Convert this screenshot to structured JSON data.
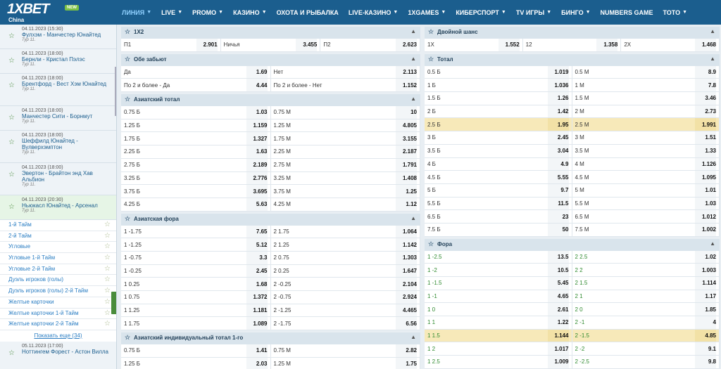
{
  "header": {
    "logo": "1XBET",
    "new_badge": "NEW",
    "region": "China",
    "nav": [
      "ЛИНИЯ",
      "LIVE",
      "PROMO",
      "КАЗИНО",
      "ОХОТА И РЫБАЛКА",
      "LIVE-КАЗИНО",
      "1XGAMES",
      "КИБЕРСПОРТ",
      "TV ИГРЫ",
      "БИНГО",
      "NUMBERS GAME",
      "ТОТО"
    ]
  },
  "sidebar": {
    "matches": [
      {
        "dt": "04.11.2023 (15:30)",
        "teams": "Фулхэм - Манчестер Юнайтед",
        "tour": "Тур 11."
      },
      {
        "dt": "04.11.2023 (18:00)",
        "teams": "Бернли - Кристал Пэлэс",
        "tour": "Тур 11."
      },
      {
        "dt": "04.11.2023 (18:00)",
        "teams": "Брентфорд - Вест Хэм Юнайтед",
        "tour": "Тур 11."
      },
      {
        "dt": "04.11.2023 (18:00)",
        "teams": "Манчестер Сити - Борнмут",
        "tour": "Тур 11."
      },
      {
        "dt": "04.11.2023 (18:00)",
        "teams": "Шеффилд Юнайтед - Вулверхэмптон",
        "tour": "Тур 11."
      },
      {
        "dt": "04.11.2023 (18:00)",
        "teams": "Эвертон - Брайтон энд Хав Альбион",
        "tour": "Тур 11."
      },
      {
        "dt": "04.11.2023 (20:30)",
        "teams": "Ньюкасл Юнайтед - Арсенал",
        "tour": "Тур 11."
      }
    ],
    "menu": [
      "1-й Тайм",
      "2-й Тайм",
      "Угловые",
      "Угловые 1-й Тайм",
      "Угловые 2-й Тайм",
      "Дуэль игроков (голы)",
      "Дуэль игроков (голы) 2-й Тайм",
      "Желтые карточки",
      "Желтые карточки 1-й Тайм",
      "Желтые карточки 2-й Тайм"
    ],
    "show_more": "Показать еще (34)",
    "next_match": {
      "dt": "05.11.2023 (17:00)",
      "teams": "Ноттингем Форест - Астон Вилла"
    }
  },
  "left": [
    {
      "title": "1X2",
      "rows": [
        [
          [
            "П1",
            "2.901"
          ],
          [
            "Ничья",
            "3.455"
          ],
          [
            "П2",
            "2.623"
          ]
        ]
      ]
    },
    {
      "title": "Обе забьют",
      "rows": [
        [
          [
            "Да",
            "1.69"
          ],
          [
            "Нет",
            "2.113"
          ]
        ],
        [
          [
            "По 2 и более - Да",
            "4.44"
          ],
          [
            "По 2 и более - Нет",
            "1.152"
          ]
        ]
      ]
    },
    {
      "title": "Азиатский тотал",
      "rows": [
        [
          [
            "0.75 Б",
            "1.03"
          ],
          [
            "0.75 М",
            "10"
          ]
        ],
        [
          [
            "1.25 Б",
            "1.159"
          ],
          [
            "1.25 М",
            "4.805"
          ]
        ],
        [
          [
            "1.75 Б",
            "1.327"
          ],
          [
            "1.75 М",
            "3.155"
          ]
        ],
        [
          [
            "2.25 Б",
            "1.63"
          ],
          [
            "2.25 М",
            "2.187"
          ]
        ],
        [
          [
            "2.75 Б",
            "2.189"
          ],
          [
            "2.75 М",
            "1.791"
          ]
        ],
        [
          [
            "3.25 Б",
            "2.776"
          ],
          [
            "3.25 М",
            "1.408"
          ]
        ],
        [
          [
            "3.75 Б",
            "3.695"
          ],
          [
            "3.75 М",
            "1.25"
          ]
        ],
        [
          [
            "4.25 Б",
            "5.63"
          ],
          [
            "4.25 М",
            "1.12"
          ]
        ]
      ]
    },
    {
      "title": "Азиатская фора",
      "rows": [
        [
          [
            "1 -1.75",
            "7.65"
          ],
          [
            "2 1.75",
            "1.064"
          ]
        ],
        [
          [
            "1 -1.25",
            "5.12"
          ],
          [
            "2 1.25",
            "1.142"
          ]
        ],
        [
          [
            "1 -0.75",
            "3.3"
          ],
          [
            "2 0.75",
            "1.303"
          ]
        ],
        [
          [
            "1 -0.25",
            "2.45"
          ],
          [
            "2 0.25",
            "1.647"
          ]
        ],
        [
          [
            "1 0.25",
            "1.68"
          ],
          [
            "2 -0.25",
            "2.104"
          ]
        ],
        [
          [
            "1 0.75",
            "1.372"
          ],
          [
            "2 -0.75",
            "2.924"
          ]
        ],
        [
          [
            "1 1.25",
            "1.181"
          ],
          [
            "2 -1.25",
            "4.465"
          ]
        ],
        [
          [
            "1 1.75",
            "1.089"
          ],
          [
            "2 -1.75",
            "6.56"
          ]
        ]
      ]
    },
    {
      "title": "Азиатский индивидуальный тотал 1-го",
      "rows": [
        [
          [
            "0.75 Б",
            "1.41"
          ],
          [
            "0.75 М",
            "2.82"
          ]
        ],
        [
          [
            "1.25 Б",
            "2.03"
          ],
          [
            "1.25 М",
            "1.75"
          ]
        ]
      ]
    }
  ],
  "right": [
    {
      "title": "Двойной шанс",
      "rows": [
        [
          [
            "1X",
            "1.552"
          ],
          [
            "12",
            "1.358"
          ],
          [
            "2X",
            "1.468"
          ]
        ]
      ]
    },
    {
      "title": "Тотал",
      "rows": [
        [
          [
            "0.5 Б",
            "1.019"
          ],
          [
            "0.5 М",
            "8.9"
          ]
        ],
        [
          [
            "1 Б",
            "1.036"
          ],
          [
            "1 М",
            "7.8"
          ]
        ],
        [
          [
            "1.5 Б",
            "1.26"
          ],
          [
            "1.5 М",
            "3.46"
          ]
        ],
        [
          [
            "2 Б",
            "1.42"
          ],
          [
            "2 М",
            "2.73"
          ]
        ],
        [
          [
            "2.5 Б",
            "1.95"
          ],
          [
            "2.5 М",
            "1.991"
          ]
        ],
        [
          [
            "3 Б",
            "2.45"
          ],
          [
            "3 М",
            "1.51"
          ]
        ],
        [
          [
            "3.5 Б",
            "3.04"
          ],
          [
            "3.5 М",
            "1.33"
          ]
        ],
        [
          [
            "4 Б",
            "4.9"
          ],
          [
            "4 М",
            "1.126"
          ]
        ],
        [
          [
            "4.5 Б",
            "5.55"
          ],
          [
            "4.5 М",
            "1.095"
          ]
        ],
        [
          [
            "5 Б",
            "9.7"
          ],
          [
            "5 М",
            "1.01"
          ]
        ],
        [
          [
            "5.5 Б",
            "11.5"
          ],
          [
            "5.5 М",
            "1.03"
          ]
        ],
        [
          [
            "6.5 Б",
            "23"
          ],
          [
            "6.5 М",
            "1.012"
          ]
        ],
        [
          [
            "7.5 Б",
            "50"
          ],
          [
            "7.5 М",
            "1.002"
          ]
        ]
      ]
    },
    {
      "title": "Фора",
      "rows": [
        [
          [
            "1 -2.5",
            "13.5"
          ],
          [
            "2 2.5",
            "1.02"
          ]
        ],
        [
          [
            "1 -2",
            "10.5"
          ],
          [
            "2 2",
            "1.003"
          ]
        ],
        [
          [
            "1 -1.5",
            "5.45"
          ],
          [
            "2 1.5",
            "1.114"
          ]
        ],
        [
          [
            "1 -1",
            "4.65"
          ],
          [
            "2 1",
            "1.17"
          ]
        ],
        [
          [
            "1 0",
            "2.61"
          ],
          [
            "2 0",
            "1.85"
          ]
        ],
        [
          [
            "1 1",
            "1.22"
          ],
          [
            "2 -1",
            "4"
          ]
        ],
        [
          [
            "1 1.5",
            "1.144"
          ],
          [
            "2 -1.5",
            "4.85"
          ]
        ],
        [
          [
            "1 2",
            "1.017"
          ],
          [
            "2 -2",
            "9.1"
          ]
        ],
        [
          [
            "1 2.5",
            "1.009"
          ],
          [
            "2 -2.5",
            "9.8"
          ]
        ]
      ]
    }
  ]
}
